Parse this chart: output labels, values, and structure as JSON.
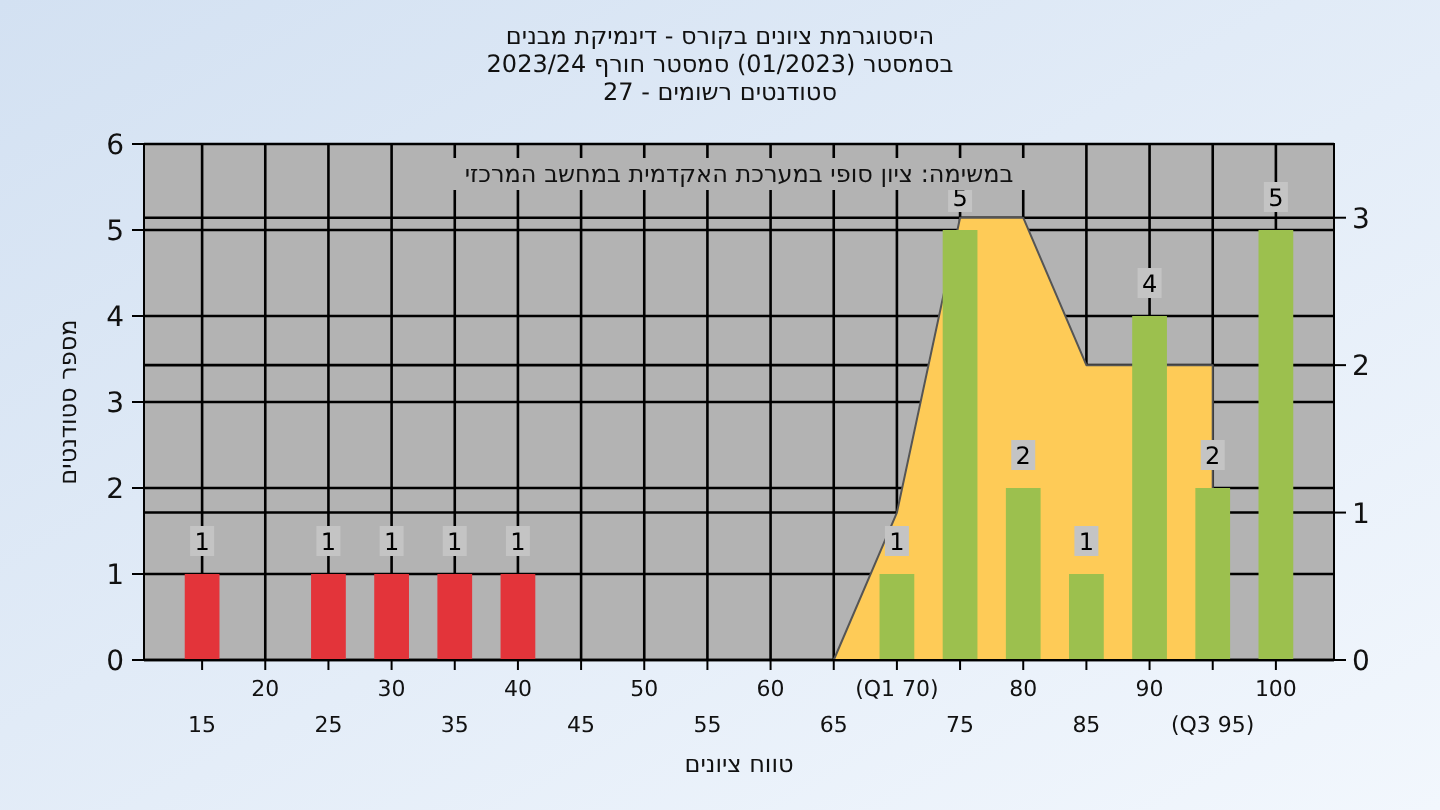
{
  "chart_data": {
    "type": "bar",
    "title": "היסטוגרמת ציונים בקורס - דינמיקת מבנים",
    "subtitle": "בסמסטר  (01/2023)  סמסטר חורף  2023/24\nסטודנטים רשומים - 27",
    "xlabel": "טווח ציונים",
    "ylabel": "מספר סטודנטים",
    "annotations": [
      "במשימה: ציון סופי במערכת האקדמית במחשב המרכזי"
    ],
    "categories": [
      "15",
      "20",
      "25",
      "30",
      "35",
      "40",
      "45",
      "50",
      "55",
      "60",
      "65",
      "(Q1 70)",
      "75",
      "80",
      "85",
      "90",
      "(Q3 95)",
      "100"
    ],
    "series": [
      {
        "values": [
          1,
          0,
          1,
          1,
          1,
          1,
          0,
          0,
          0,
          0,
          0,
          1,
          5,
          2,
          1,
          4,
          2,
          5
        ],
        "value_labels": [
          "1",
          null,
          "1",
          "1",
          "1",
          "1",
          null,
          null,
          null,
          null,
          null,
          "1",
          "5",
          "2",
          "1",
          "4",
          "2",
          "5"
        ],
        "colors": [
          "#e3343a",
          "#e3343a",
          "#e3343a",
          "#e3343a",
          "#e3343a",
          "#e3343a",
          "#e3343a",
          "#e3343a",
          "#e3343a",
          "#e3343a",
          "#e3343a",
          "#9cc04e",
          "#9cc04e",
          "#9cc04e",
          "#9cc04e",
          "#9cc04e",
          "#9cc04e",
          "#9cc04e"
        ]
      },
      {
        "type": "area",
        "axis": "y2",
        "color": "#fecb57",
        "values": [
          null,
          null,
          null,
          null,
          null,
          null,
          null,
          null,
          null,
          null,
          0,
          1,
          3,
          3,
          2,
          null,
          2,
          null
        ]
      }
    ],
    "ylim": [
      0,
      6
    ],
    "yticks": [
      0,
      1,
      2,
      3,
      4,
      5,
      6
    ],
    "y2lim": [
      0,
      3.5
    ],
    "y2ticks": [
      0,
      1,
      2,
      3
    ],
    "grid": true
  }
}
